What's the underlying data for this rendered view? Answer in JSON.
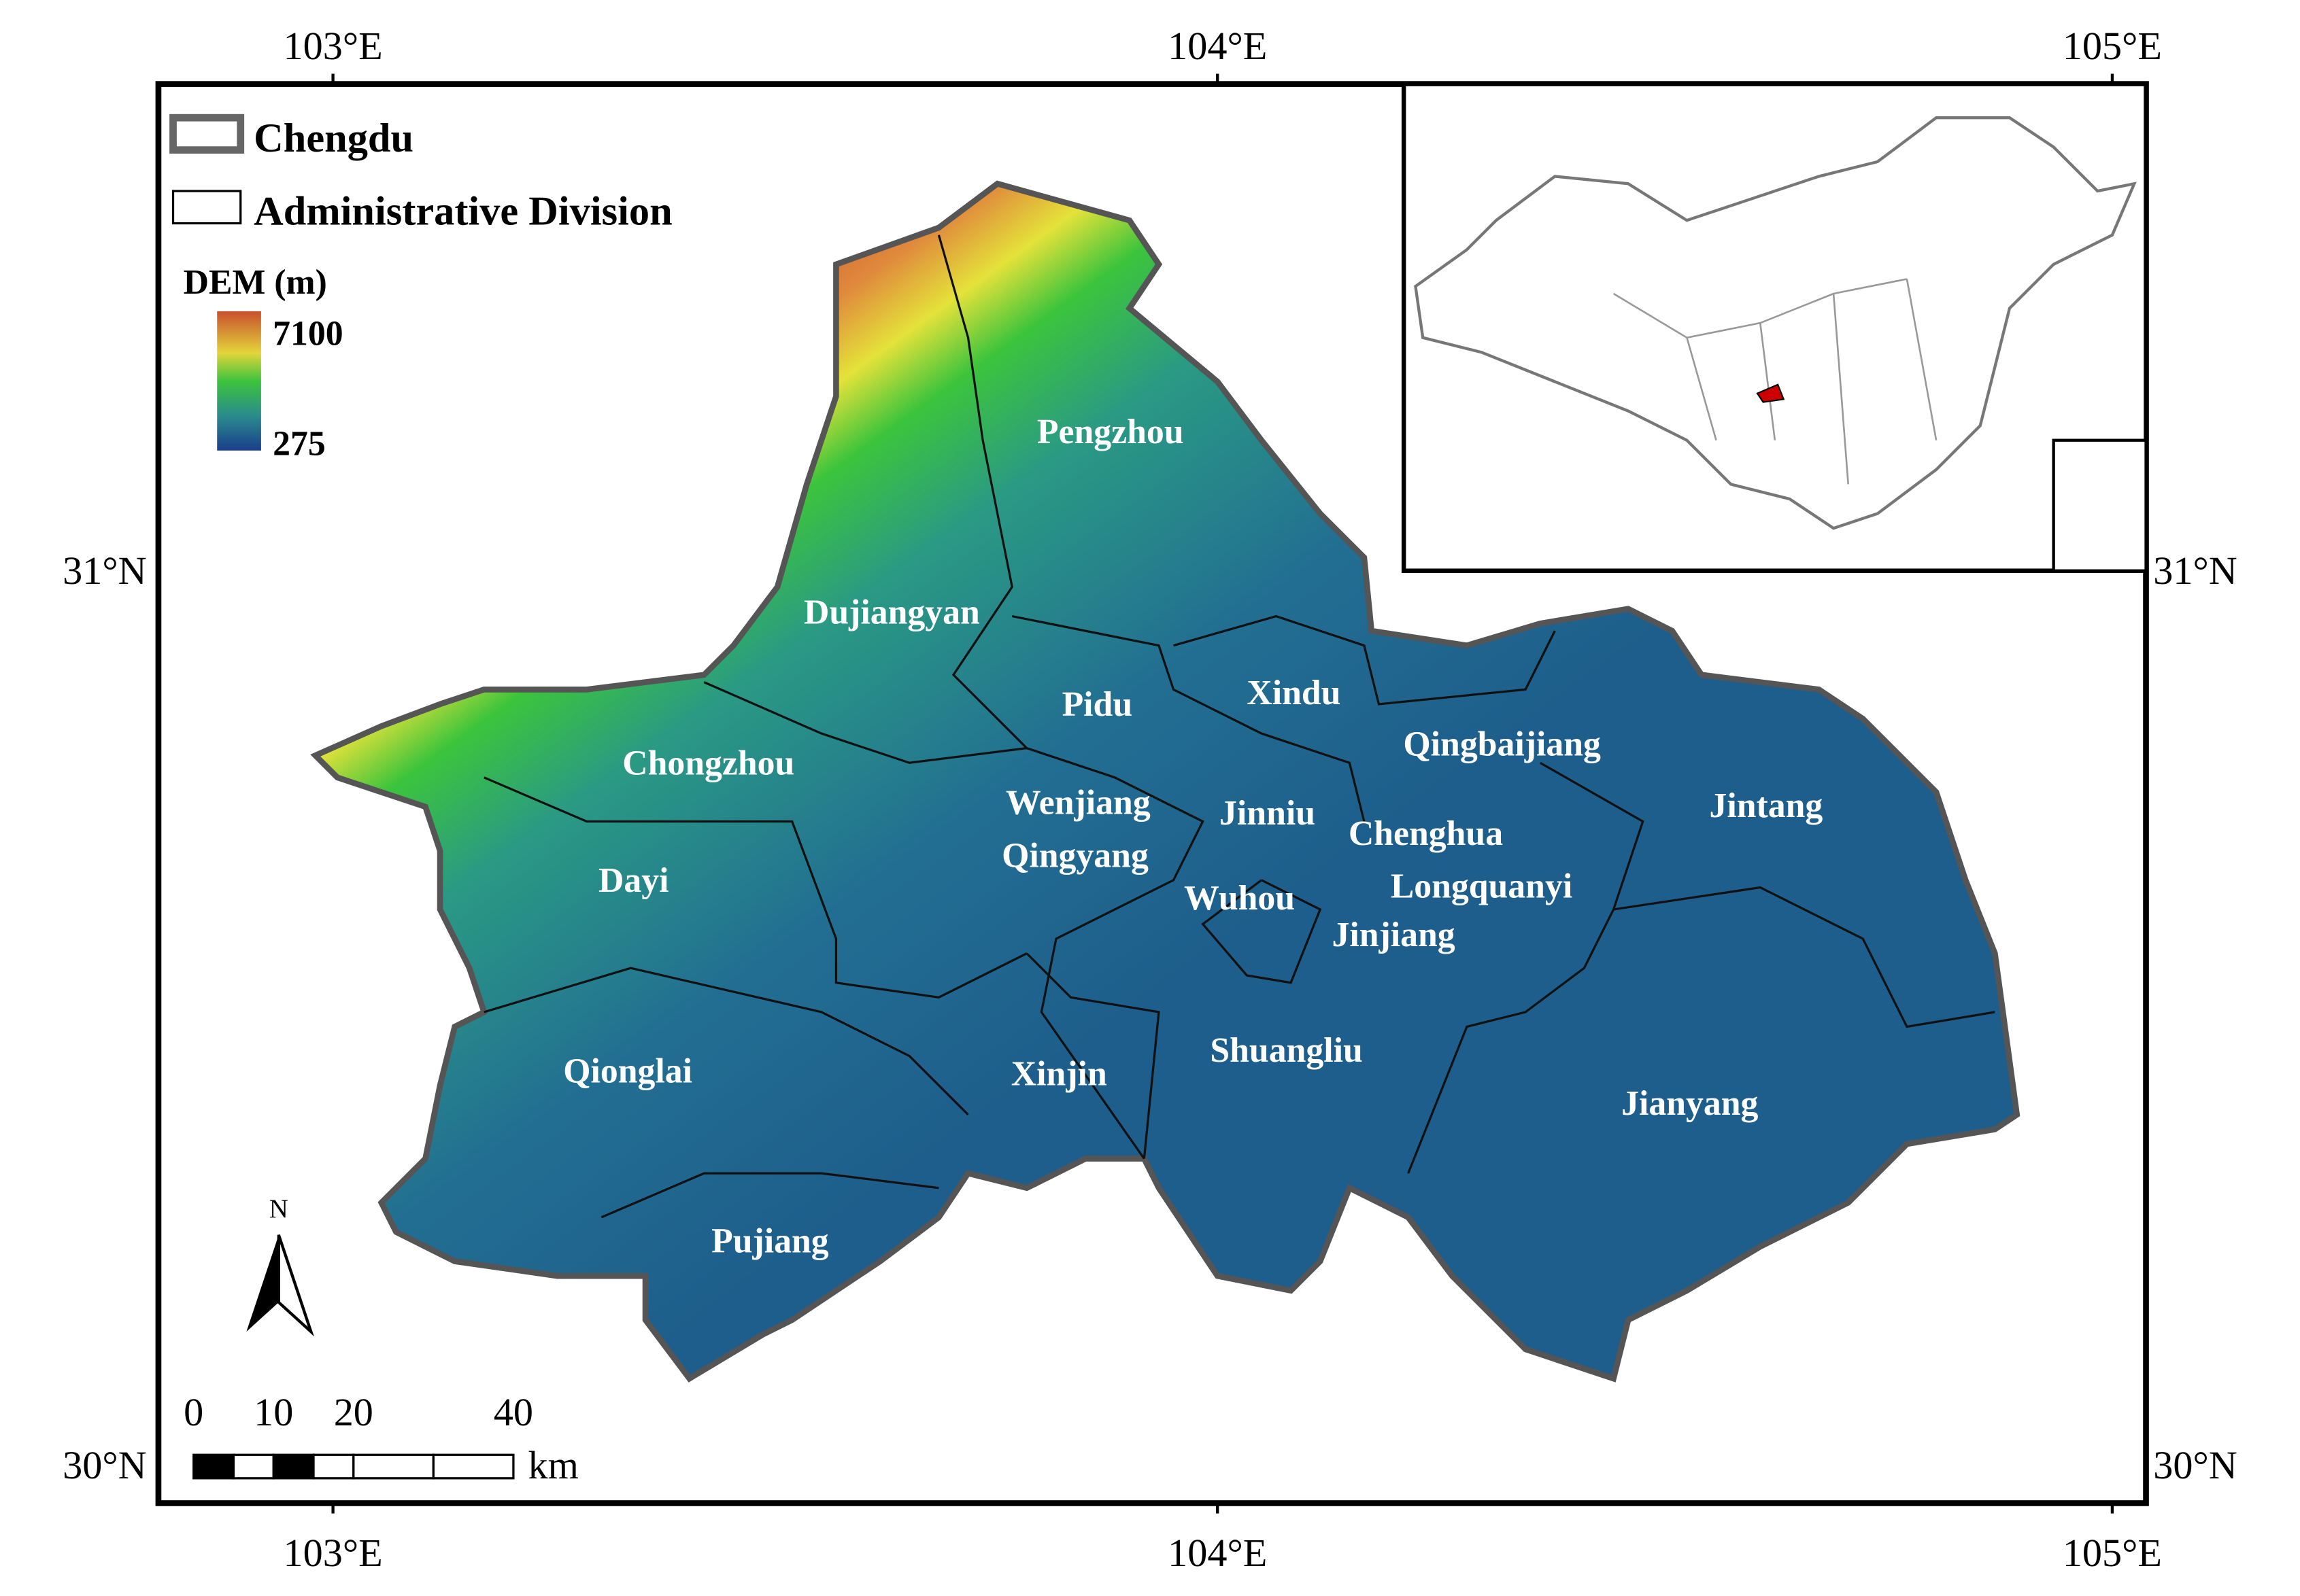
{
  "legend": {
    "boundary": "Chengdu",
    "division": "Administrative Division",
    "dem_title": "DEM (m)",
    "dem_max": 7100,
    "dem_min": 275
  },
  "grid_labels": {
    "longitude": [
      "103°E",
      "104°E",
      "105°E"
    ],
    "latitude": [
      "31°N",
      "30°N"
    ]
  },
  "districts": [
    "Pengzhou",
    "Dujiangyan",
    "Pidu",
    "Xindu",
    "Qingbaijiang",
    "Chongzhou",
    "Wenjiang",
    "Jinniu",
    "Chenghua",
    "Jintang",
    "Qingyang",
    "Dayi",
    "Longquanyi",
    "Wuhou",
    "Jinjiang",
    "Shuangliu",
    "Qionglai",
    "Xinjin",
    "Jianyang",
    "Pujiang"
  ],
  "north_arrow": "N",
  "scale_bar": {
    "ticks": [
      0,
      10,
      20,
      40
    ],
    "unit": "km"
  }
}
